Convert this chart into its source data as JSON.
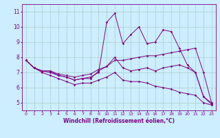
{
  "xlabel": "Windchill (Refroidissement éolien,°C)",
  "background_color": "#cceeff",
  "line_color": "#800080",
  "hours": [
    0,
    1,
    2,
    3,
    4,
    5,
    6,
    7,
    8,
    9,
    10,
    11,
    12,
    13,
    14,
    15,
    16,
    17,
    18,
    19,
    20,
    21,
    22,
    23
  ],
  "series_volatile": [
    7.8,
    7.3,
    7.1,
    7.0,
    6.8,
    6.7,
    6.5,
    6.6,
    6.7,
    7.0,
    10.3,
    10.9,
    8.9,
    9.5,
    10.0,
    8.9,
    9.0,
    9.8,
    9.7,
    8.6,
    7.5,
    7.0,
    5.4,
    4.9
  ],
  "series_uptrend": [
    7.8,
    7.3,
    7.1,
    7.1,
    6.9,
    6.8,
    6.7,
    6.8,
    6.9,
    7.2,
    7.4,
    7.8,
    7.8,
    7.9,
    8.0,
    8.1,
    8.1,
    8.2,
    8.3,
    8.4,
    8.5,
    8.6,
    7.0,
    5.0
  ],
  "series_flat": [
    7.8,
    7.3,
    7.1,
    7.1,
    6.8,
    6.7,
    6.5,
    6.6,
    6.6,
    7.1,
    7.4,
    8.0,
    7.3,
    7.1,
    7.2,
    7.3,
    7.1,
    7.3,
    7.4,
    7.5,
    7.3,
    7.0,
    5.4,
    5.0
  ],
  "series_downtrend": [
    7.8,
    7.3,
    7.0,
    6.8,
    6.6,
    6.4,
    6.2,
    6.3,
    6.3,
    6.5,
    6.7,
    7.0,
    6.5,
    6.4,
    6.4,
    6.3,
    6.1,
    6.0,
    5.9,
    5.7,
    5.6,
    5.5,
    5.0,
    4.85
  ],
  "ylim": [
    4.5,
    11.5
  ],
  "yticks": [
    5,
    6,
    7,
    8,
    9,
    10,
    11
  ],
  "xlim": [
    -0.5,
    23.5
  ],
  "figsize": [
    3.2,
    2.0
  ],
  "dpi": 100
}
